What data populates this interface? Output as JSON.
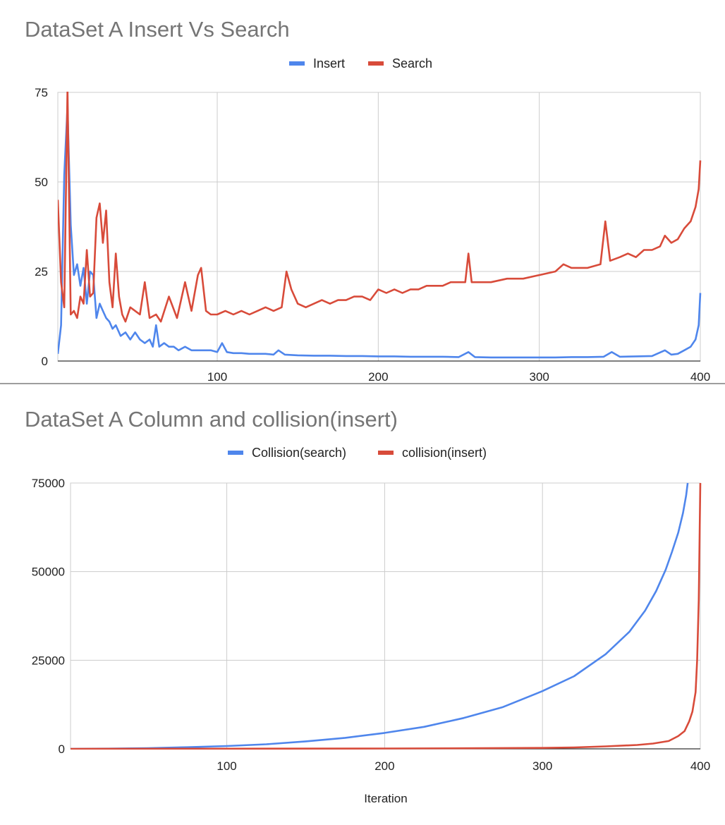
{
  "chart_data": [
    {
      "type": "line",
      "title": "DataSet A Insert Vs Search",
      "xlabel": "",
      "ylabel": "",
      "xlim": [
        1,
        400
      ],
      "ylim": [
        0,
        75
      ],
      "x_ticks": [
        100,
        200,
        300,
        400
      ],
      "y_ticks": [
        0,
        25,
        50,
        75
      ],
      "grid": true,
      "legend_position": "top",
      "series": [
        {
          "name": "Insert",
          "color": "#4f86ec",
          "points": [
            [
              1,
              2
            ],
            [
              3,
              10
            ],
            [
              5,
              52
            ],
            [
              7,
              71
            ],
            [
              9,
              38
            ],
            [
              11,
              24
            ],
            [
              13,
              27
            ],
            [
              15,
              21
            ],
            [
              17,
              26
            ],
            [
              19,
              16
            ],
            [
              21,
              25
            ],
            [
              23,
              24
            ],
            [
              25,
              12
            ],
            [
              27,
              16
            ],
            [
              29,
              14
            ],
            [
              31,
              12
            ],
            [
              33,
              11
            ],
            [
              35,
              9
            ],
            [
              37,
              10
            ],
            [
              40,
              7
            ],
            [
              43,
              8
            ],
            [
              46,
              6
            ],
            [
              49,
              8
            ],
            [
              52,
              6
            ],
            [
              55,
              5
            ],
            [
              58,
              6
            ],
            [
              60,
              4
            ],
            [
              62,
              10
            ],
            [
              64,
              4
            ],
            [
              67,
              5
            ],
            [
              70,
              4
            ],
            [
              73,
              4
            ],
            [
              76,
              3
            ],
            [
              80,
              4
            ],
            [
              84,
              3
            ],
            [
              88,
              3
            ],
            [
              92,
              3
            ],
            [
              96,
              3
            ],
            [
              100,
              2.5
            ],
            [
              103,
              5
            ],
            [
              106,
              2.5
            ],
            [
              110,
              2.2
            ],
            [
              115,
              2.2
            ],
            [
              120,
              2
            ],
            [
              125,
              2
            ],
            [
              130,
              2
            ],
            [
              135,
              1.8
            ],
            [
              138,
              3
            ],
            [
              142,
              1.8
            ],
            [
              150,
              1.6
            ],
            [
              160,
              1.5
            ],
            [
              170,
              1.5
            ],
            [
              180,
              1.4
            ],
            [
              190,
              1.4
            ],
            [
              200,
              1.3
            ],
            [
              210,
              1.3
            ],
            [
              220,
              1.2
            ],
            [
              230,
              1.2
            ],
            [
              240,
              1.2
            ],
            [
              250,
              1.1
            ],
            [
              256,
              2.5
            ],
            [
              260,
              1.1
            ],
            [
              270,
              1
            ],
            [
              280,
              1
            ],
            [
              290,
              1
            ],
            [
              300,
              1
            ],
            [
              310,
              1
            ],
            [
              320,
              1.1
            ],
            [
              330,
              1.1
            ],
            [
              340,
              1.2
            ],
            [
              345,
              2.5
            ],
            [
              350,
              1.2
            ],
            [
              360,
              1.3
            ],
            [
              370,
              1.4
            ],
            [
              378,
              3
            ],
            [
              382,
              1.8
            ],
            [
              386,
              2
            ],
            [
              390,
              3
            ],
            [
              394,
              4
            ],
            [
              397,
              6
            ],
            [
              399,
              10
            ],
            [
              400,
              19
            ]
          ]
        },
        {
          "name": "Search",
          "color": "#d84b3a",
          "points": [
            [
              1,
              45
            ],
            [
              3,
              22
            ],
            [
              5,
              15
            ],
            [
              7,
              76
            ],
            [
              9,
              13
            ],
            [
              11,
              14
            ],
            [
              13,
              12
            ],
            [
              15,
              18
            ],
            [
              17,
              16
            ],
            [
              19,
              31
            ],
            [
              21,
              18
            ],
            [
              23,
              19
            ],
            [
              25,
              40
            ],
            [
              27,
              44
            ],
            [
              29,
              33
            ],
            [
              31,
              42
            ],
            [
              33,
              22
            ],
            [
              35,
              15
            ],
            [
              37,
              30
            ],
            [
              39,
              18
            ],
            [
              41,
              13
            ],
            [
              43,
              11
            ],
            [
              46,
              15
            ],
            [
              49,
              14
            ],
            [
              52,
              13
            ],
            [
              55,
              22
            ],
            [
              58,
              12
            ],
            [
              62,
              13
            ],
            [
              65,
              11
            ],
            [
              70,
              18
            ],
            [
              75,
              12
            ],
            [
              80,
              22
            ],
            [
              84,
              14
            ],
            [
              88,
              24
            ],
            [
              90,
              26
            ],
            [
              93,
              14
            ],
            [
              96,
              13
            ],
            [
              100,
              13
            ],
            [
              105,
              14
            ],
            [
              110,
              13
            ],
            [
              115,
              14
            ],
            [
              120,
              13
            ],
            [
              125,
              14
            ],
            [
              130,
              15
            ],
            [
              135,
              14
            ],
            [
              140,
              15
            ],
            [
              143,
              25
            ],
            [
              146,
              20
            ],
            [
              150,
              16
            ],
            [
              155,
              15
            ],
            [
              160,
              16
            ],
            [
              165,
              17
            ],
            [
              170,
              16
            ],
            [
              175,
              17
            ],
            [
              180,
              17
            ],
            [
              185,
              18
            ],
            [
              190,
              18
            ],
            [
              195,
              17
            ],
            [
              200,
              20
            ],
            [
              205,
              19
            ],
            [
              210,
              20
            ],
            [
              215,
              19
            ],
            [
              220,
              20
            ],
            [
              225,
              20
            ],
            [
              230,
              21
            ],
            [
              235,
              21
            ],
            [
              240,
              21
            ],
            [
              245,
              22
            ],
            [
              250,
              22
            ],
            [
              254,
              22
            ],
            [
              256,
              30
            ],
            [
              258,
              22
            ],
            [
              262,
              22
            ],
            [
              270,
              22
            ],
            [
              280,
              23
            ],
            [
              290,
              23
            ],
            [
              300,
              24
            ],
            [
              310,
              25
            ],
            [
              315,
              27
            ],
            [
              320,
              26
            ],
            [
              330,
              26
            ],
            [
              338,
              27
            ],
            [
              341,
              39
            ],
            [
              344,
              28
            ],
            [
              350,
              29
            ],
            [
              355,
              30
            ],
            [
              360,
              29
            ],
            [
              365,
              31
            ],
            [
              370,
              31
            ],
            [
              375,
              32
            ],
            [
              378,
              35
            ],
            [
              382,
              33
            ],
            [
              386,
              34
            ],
            [
              390,
              37
            ],
            [
              394,
              39
            ],
            [
              397,
              43
            ],
            [
              399,
              48
            ],
            [
              400,
              56
            ]
          ]
        }
      ]
    },
    {
      "type": "line",
      "title": "DataSet A Column and collision(insert)",
      "xlabel": "Iteration",
      "ylabel": "",
      "xlim": [
        1,
        400
      ],
      "ylim": [
        0,
        75000
      ],
      "x_ticks": [
        100,
        200,
        300,
        400
      ],
      "y_ticks": [
        0,
        25000,
        50000,
        75000
      ],
      "grid": true,
      "legend_position": "top",
      "series": [
        {
          "name": "Collision(search)",
          "color": "#4f86ec",
          "points": [
            [
              1,
              0
            ],
            [
              25,
              50
            ],
            [
              50,
              200
            ],
            [
              75,
              450
            ],
            [
              100,
              800
            ],
            [
              125,
              1300
            ],
            [
              150,
              2100
            ],
            [
              175,
              3100
            ],
            [
              200,
              4500
            ],
            [
              225,
              6200
            ],
            [
              250,
              8700
            ],
            [
              275,
              11800
            ],
            [
              300,
              16300
            ],
            [
              320,
              20500
            ],
            [
              340,
              26700
            ],
            [
              355,
              33000
            ],
            [
              365,
              39000
            ],
            [
              372,
              44500
            ],
            [
              378,
              50500
            ],
            [
              382,
              55500
            ],
            [
              386,
              61000
            ],
            [
              389,
              66500
            ],
            [
              391,
              71500
            ],
            [
              392,
              75000
            ]
          ]
        },
        {
          "name": "collision(insert)",
          "color": "#d84b3a",
          "points": [
            [
              1,
              0
            ],
            [
              100,
              40
            ],
            [
              200,
              100
            ],
            [
              250,
              150
            ],
            [
              300,
              250
            ],
            [
              320,
              400
            ],
            [
              340,
              700
            ],
            [
              360,
              1100
            ],
            [
              370,
              1500
            ],
            [
              380,
              2200
            ],
            [
              386,
              3600
            ],
            [
              390,
              5000
            ],
            [
              393,
              7800
            ],
            [
              395,
              10500
            ],
            [
              397,
              16000
            ],
            [
              398,
              25000
            ],
            [
              399,
              42000
            ],
            [
              400,
              75000
            ]
          ]
        }
      ]
    }
  ]
}
